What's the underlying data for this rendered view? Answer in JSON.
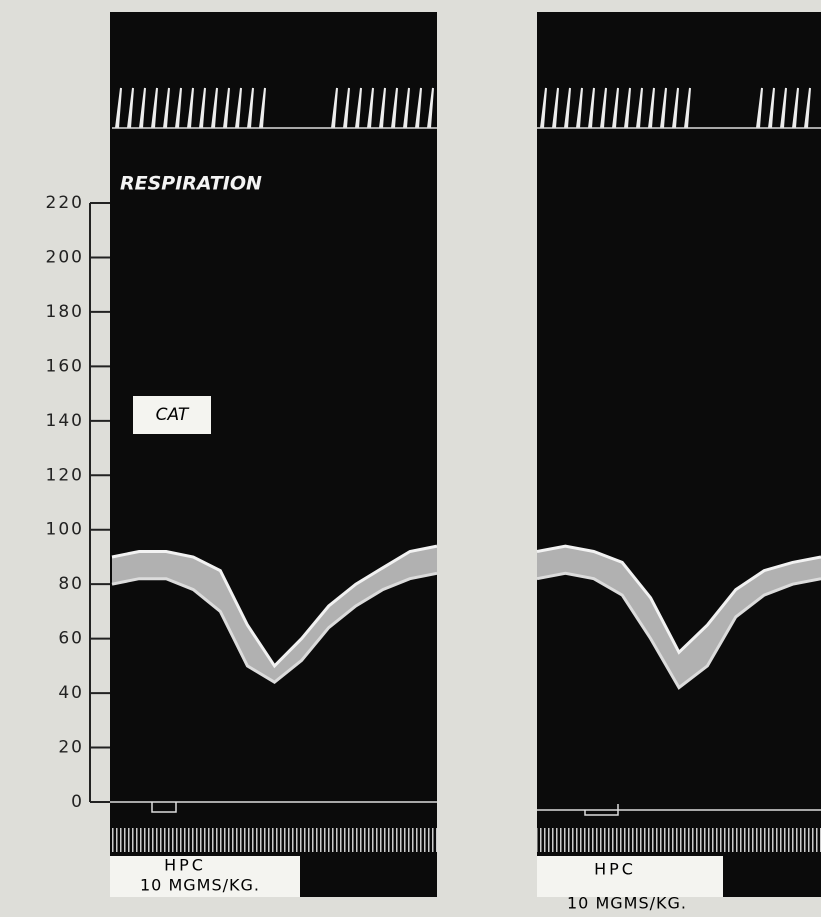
{
  "chart_data": [
    {
      "type": "line",
      "ylim": [
        0,
        220
      ],
      "yticks": [
        0,
        20,
        40,
        60,
        80,
        100,
        120,
        140,
        160,
        180,
        200,
        220
      ],
      "annotations": [
        "RESPIRATION",
        "CAT"
      ],
      "injection": [
        "HPC",
        "10 MGMS/KG."
      ],
      "series": [
        {
          "color": "#f2f2f2",
          "values": [
            90,
            92,
            92,
            90,
            85,
            65,
            50,
            60,
            72,
            80,
            86,
            92,
            94
          ]
        },
        {
          "color": "#dcdcdc",
          "values": [
            80,
            82,
            82,
            78,
            70,
            50,
            44,
            52,
            64,
            72,
            78,
            82,
            84
          ]
        }
      ]
    },
    {
      "type": "line",
      "ylim": [
        0,
        220
      ],
      "injection": [
        "HPC",
        "10 MGMS/KG."
      ],
      "series": [
        {
          "color": "#f2f2f2",
          "values": [
            92,
            94,
            92,
            88,
            75,
            55,
            65,
            78,
            85,
            88,
            90
          ]
        },
        {
          "color": "#dcdcdc",
          "values": [
            82,
            84,
            82,
            76,
            60,
            42,
            50,
            68,
            76,
            80,
            82
          ]
        }
      ]
    }
  ]
}
